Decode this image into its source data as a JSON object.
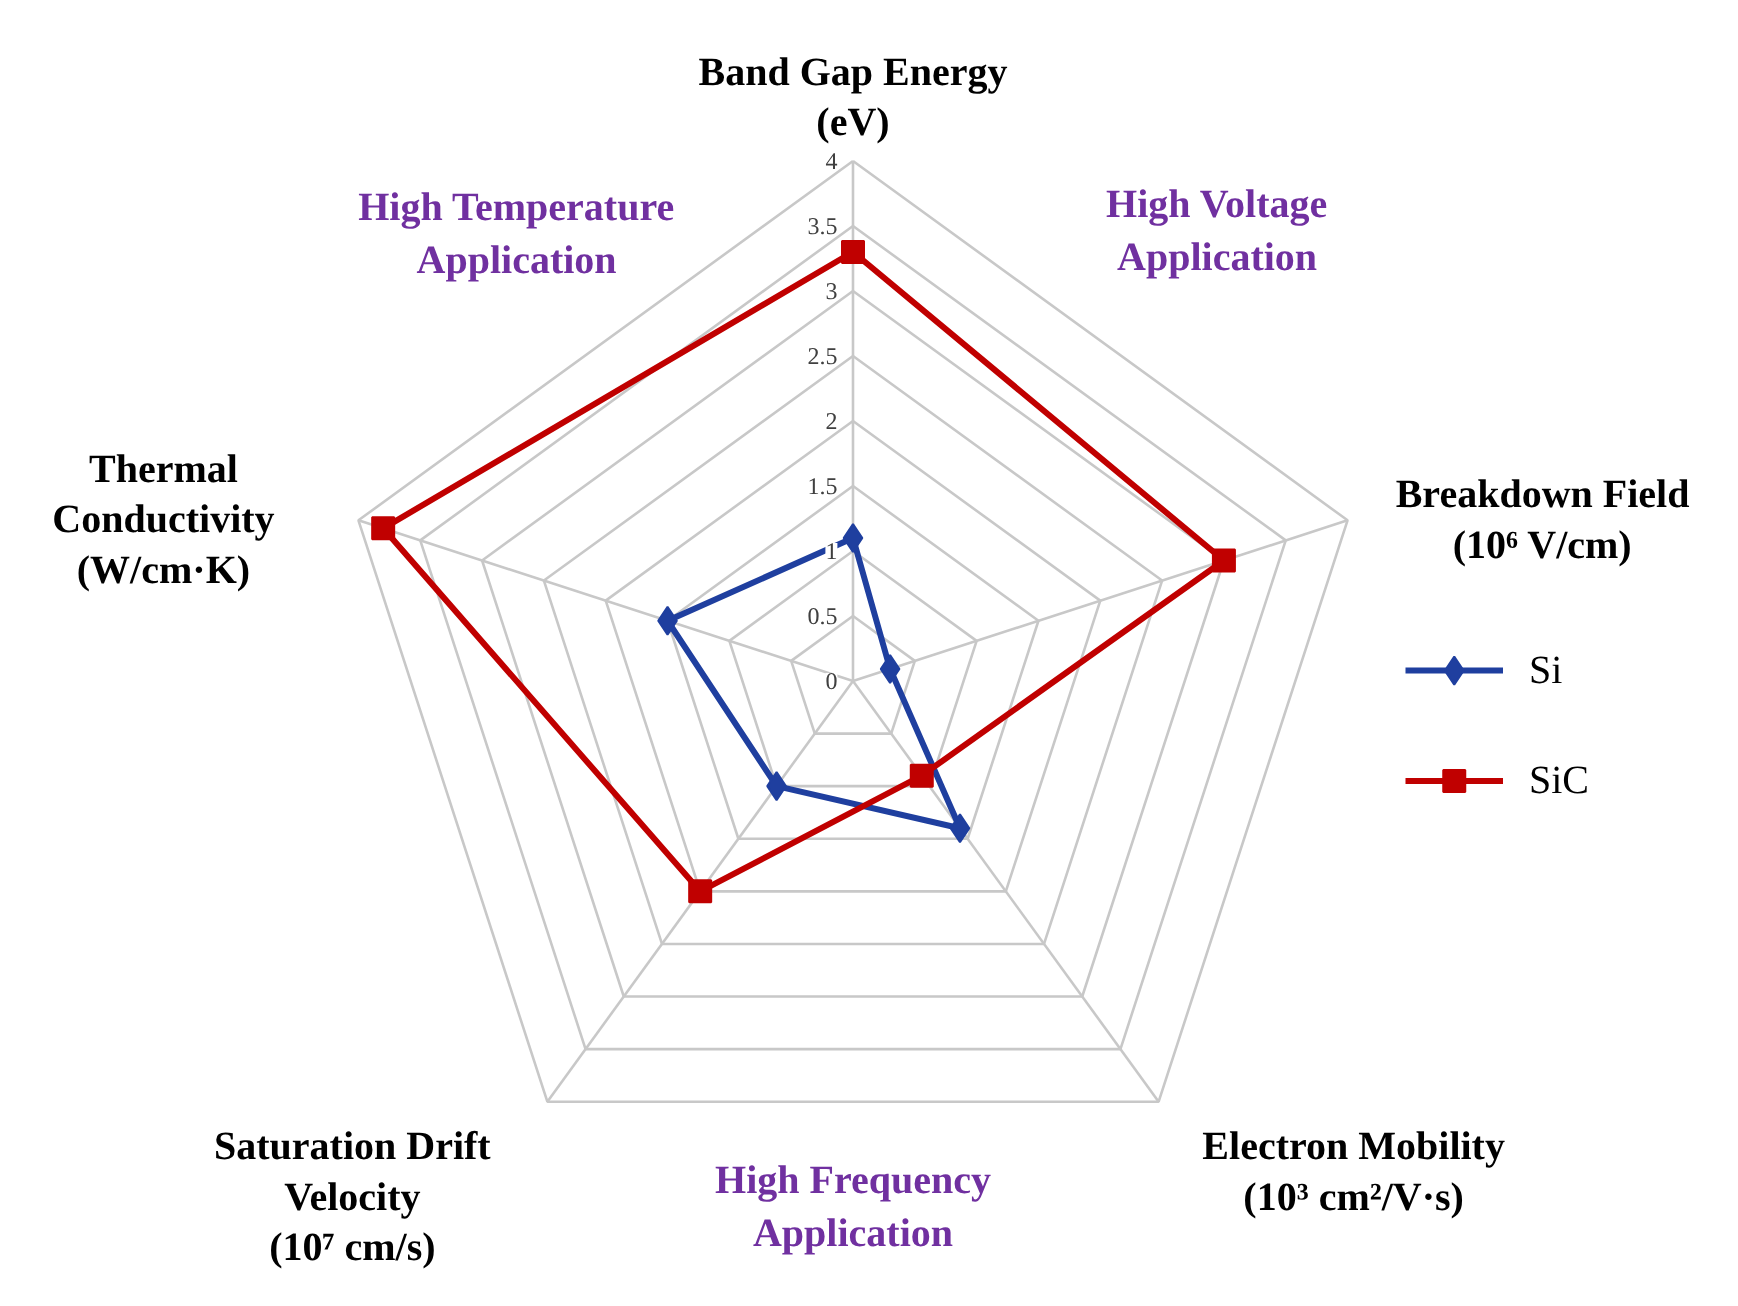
{
  "chart_data": {
    "type": "radar",
    "categories": [
      "Band Gap Energy\n(eV)",
      "Breakdown Field\n(10⁶ V/cm)",
      "Electron Mobility\n(10³ cm²/V·s)",
      "Saturation Drift\nVelocity\n(10⁷ cm/s)",
      "Thermal\nConductivity\n(W/cm·K)"
    ],
    "series": [
      {
        "name": "Si",
        "color": "#1f3f9f",
        "marker": "diamond",
        "values": [
          1.1,
          0.3,
          1.4,
          1.0,
          1.5
        ]
      },
      {
        "name": "SiC",
        "color": "#c00000",
        "marker": "square",
        "values": [
          3.3,
          3.0,
          0.9,
          2.0,
          3.8
        ]
      }
    ],
    "ylim": [
      0,
      4
    ],
    "yticks": [
      0,
      0.5,
      1,
      1.5,
      2,
      2.5,
      3,
      3.5,
      4
    ],
    "grid": true,
    "legend": "right",
    "annotations": [
      "High Temperature\nApplication",
      "High Voltage\nApplication",
      "High Frequency\nApplication"
    ]
  }
}
